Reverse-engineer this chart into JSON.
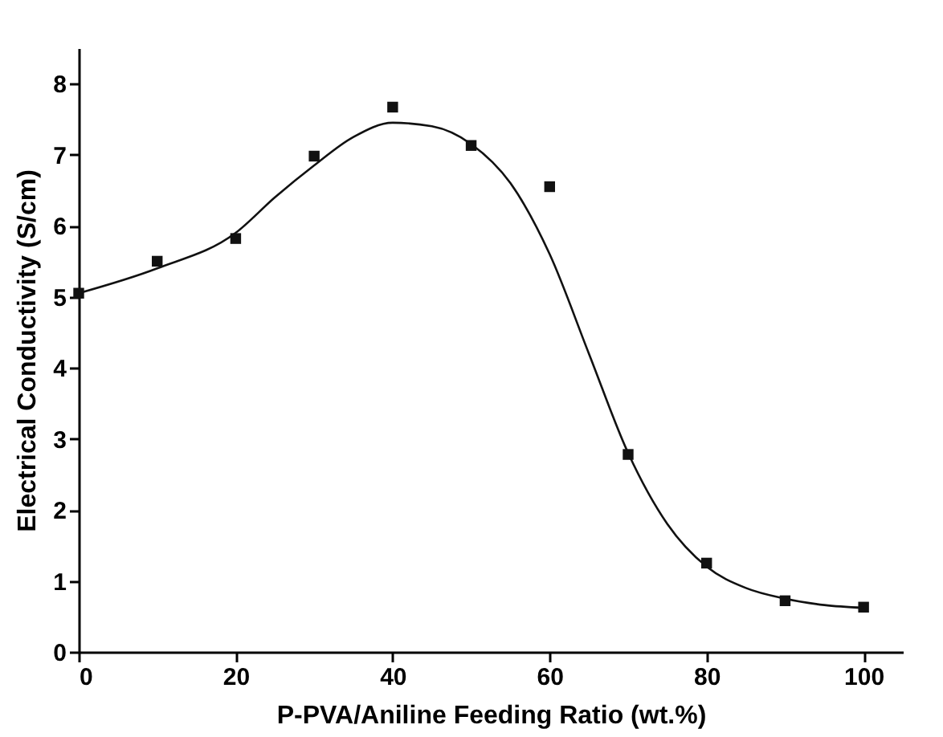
{
  "chart_data": {
    "type": "scatter",
    "xlabel": "P-PVA/Aniline Feeding Ratio (wt.%)",
    "ylabel": "Electrical  Conductivity (S/cm)",
    "x": [
      0,
      10,
      20,
      30,
      40,
      50,
      60,
      70,
      80,
      90,
      100
    ],
    "series": [
      {
        "color": "#111111",
        "marker": "square",
        "values": [
          5.05,
          5.5,
          5.82,
          6.98,
          7.67,
          7.13,
          6.55,
          2.78,
          1.25,
          0.72,
          0.63
        ]
      },
      {
        "type": "line",
        "color": "#111111",
        "line_style": "solid",
        "x": [
          0,
          10,
          20,
          25,
          30,
          35,
          40,
          45,
          50,
          55,
          60,
          65,
          70,
          75,
          80,
          85,
          90,
          95,
          100
        ],
        "values": [
          5.05,
          5.4,
          5.9,
          6.4,
          6.85,
          7.25,
          7.45,
          7.4,
          7.15,
          6.6,
          5.6,
          4.2,
          2.8,
          1.8,
          1.2,
          0.9,
          0.75,
          0.66,
          0.62
        ]
      }
    ],
    "xlim": [
      0,
      105
    ],
    "xticks": [
      0,
      20,
      40,
      60,
      80,
      100
    ],
    "ylim": [
      0,
      8.5
    ],
    "yticks": [
      0,
      1,
      2,
      3,
      4,
      5,
      6,
      7,
      8
    ],
    "grid": false
  }
}
